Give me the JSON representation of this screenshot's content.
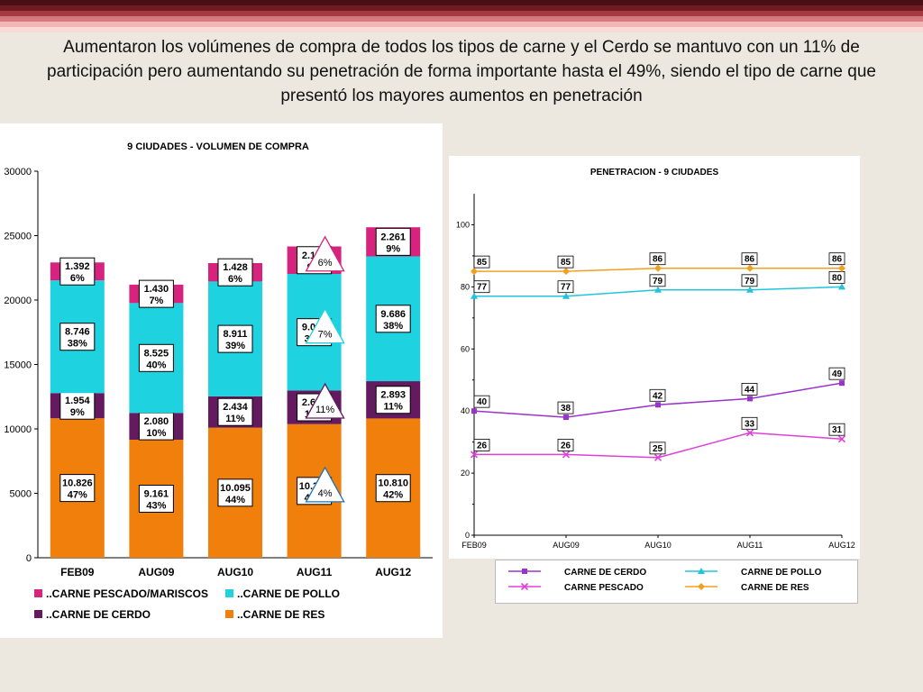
{
  "slide": {
    "title": "Aumentaron los volúmenes de compra de todos los tipos de carne y el Cerdo se mantuvo con un 11% de participación pero aumentando su penetración de forma importante hasta el 49%, siendo el tipo de carne que presentó los mayores aumentos en penetración",
    "stripe_colors": [
      "#4a0f12",
      "#6e1c22",
      "#a43a42",
      "#d47a7e",
      "#f2b6b6",
      "#fbd9d6"
    ]
  },
  "chart_data": [
    {
      "type": "bar",
      "stacked": true,
      "title": "9 CIUDADES - VOLUMEN DE COMPRA",
      "categories": [
        "FEB09",
        "AUG09",
        "AUG10",
        "AUG11",
        "AUG12"
      ],
      "ylim": [
        0,
        30000
      ],
      "yticks": [
        "0",
        "5000",
        "10000",
        "15000",
        "20000",
        "25000",
        "30000"
      ],
      "series": [
        {
          "name": "..CARNE DE RES",
          "color": "#f07f0c",
          "values": [
            10826,
            9161,
            10095,
            10371,
            10810
          ],
          "labels": [
            "10.826",
            "9.161",
            "10.095",
            "10.371",
            "10.810"
          ],
          "pcts": [
            "47%",
            "43%",
            "44%",
            "43%",
            "42%"
          ]
        },
        {
          "name": "..CARNE DE CERDO",
          "color": "#641a5e",
          "values": [
            1954,
            2080,
            2434,
            2614,
            2893
          ],
          "labels": [
            "1.954",
            "2.080",
            "2.434",
            "2.614",
            "2.893"
          ],
          "pcts": [
            "9%",
            "10%",
            "11%",
            "11%",
            "11%"
          ]
        },
        {
          "name": "..CARNE DE POLLO",
          "color": "#1ed2df",
          "values": [
            8746,
            8525,
            8911,
            9042,
            9686
          ],
          "labels": [
            "8.746",
            "8.525",
            "8.911",
            "9.042",
            "9.686"
          ],
          "pcts": [
            "38%",
            "40%",
            "39%",
            "37%",
            "38%"
          ]
        },
        {
          "name": "..CARNE PESCADO/MARISCOS",
          "color": "#d6237e",
          "values": [
            1392,
            1430,
            1428,
            2133,
            2261
          ],
          "labels": [
            "1.392",
            "1.430",
            "1.428",
            "2.133",
            "2.261"
          ],
          "pcts": [
            "6%",
            "7%",
            "6%",
            "9%",
            "9%"
          ]
        }
      ],
      "annotations": [
        "6%",
        "7%",
        "11%",
        "4%"
      ],
      "legend": "bottom"
    },
    {
      "type": "line",
      "title": "PENETRACION - 9 CIUDADES",
      "x": [
        "FEB09",
        "AUG09",
        "AUG10",
        "AUG11",
        "AUG12"
      ],
      "ylim": [
        0,
        110
      ],
      "yticks": [
        "0",
        "20",
        "40",
        "60",
        "80",
        "100"
      ],
      "series": [
        {
          "name": "CARNE DE CERDO",
          "color": "#9933cc",
          "marker": "square",
          "values": [
            40,
            38,
            42,
            44,
            49
          ]
        },
        {
          "name": "CARNE DE POLLO",
          "color": "#22c4dd",
          "marker": "triangle",
          "values": [
            77,
            77,
            79,
            79,
            80
          ]
        },
        {
          "name": "CARNE PESCADO",
          "color": "#e040d8",
          "marker": "x",
          "values": [
            26,
            26,
            25,
            33,
            31
          ]
        },
        {
          "name": "CARNE DE RES",
          "color": "#f0a020",
          "marker": "diamond",
          "values": [
            85,
            85,
            86,
            86,
            86
          ]
        }
      ],
      "legend": "bottom"
    }
  ]
}
